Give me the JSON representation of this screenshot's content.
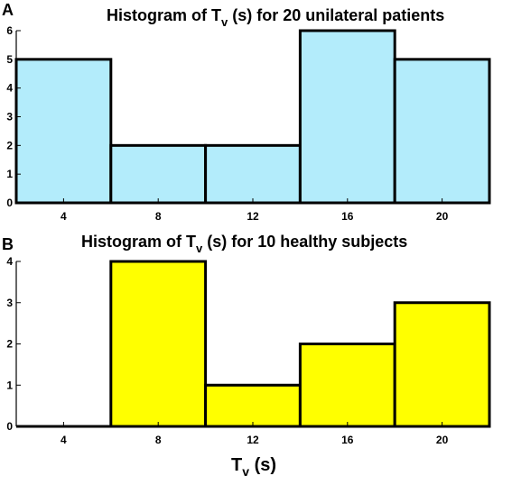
{
  "chart_data": [
    {
      "type": "bar",
      "panel": "A",
      "title_prefix": "Histogram of T",
      "title_sub": "v",
      "title_suffix": " (s) for 20 unilateral patients",
      "categories": [
        "4",
        "8",
        "12",
        "16",
        "20"
      ],
      "values": [
        5,
        2,
        2,
        6,
        5
      ],
      "yticks": [
        "0",
        "1",
        "2",
        "3",
        "4",
        "5",
        "6"
      ],
      "ylim": [
        0,
        6
      ],
      "color": "#b3ecfb"
    },
    {
      "type": "bar",
      "panel": "B",
      "title_prefix": "Histogram of T",
      "title_sub": "v",
      "title_suffix": " (s) for 10 healthy subjects",
      "categories": [
        "4",
        "8",
        "12",
        "16",
        "20"
      ],
      "values": [
        0,
        4,
        1,
        2,
        3
      ],
      "yticks": [
        "0",
        "1",
        "2",
        "3",
        "4"
      ],
      "ylim": [
        0,
        4
      ],
      "color": "#ffff00",
      "xlabel_main": "T",
      "xlabel_sub": "v",
      "xlabel_suffix": " (s)"
    }
  ]
}
